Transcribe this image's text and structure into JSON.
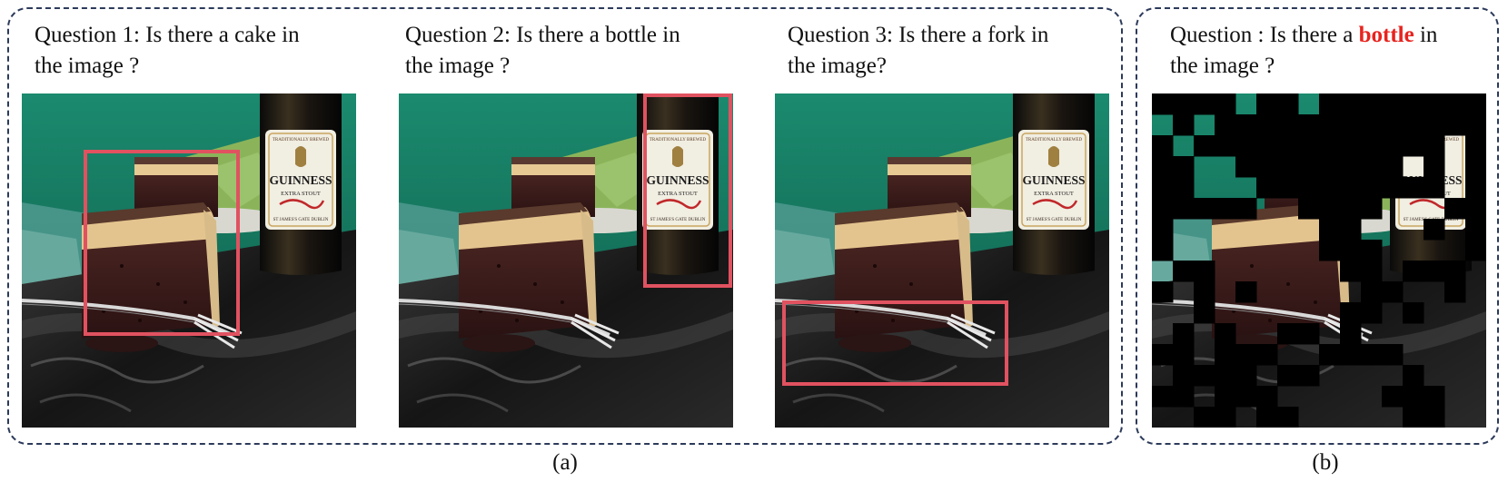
{
  "panel_a": {
    "caption": "(a)",
    "questions": [
      {
        "line1": "Question 1: Is there a cake in",
        "line2": "the image ?",
        "target": "cake"
      },
      {
        "line1": "Question 2: Is there a bottle in",
        "line2": "the image ?",
        "target": "bottle"
      },
      {
        "line1": "Question 3: Is there a fork in",
        "line2": "the image?",
        "target": "fork"
      }
    ]
  },
  "panel_b": {
    "caption": "(b)",
    "question_prefix": "Question : Is there a ",
    "question_keyword": "bottle",
    "question_suffix": " in",
    "question_line2": "the image ?",
    "keyword_color": "#e8231e"
  },
  "photo": {
    "bottle_label_brand": "GUINNESS",
    "bottle_label_sub": "EXTRA STOUT",
    "bottle_label_top": "TRADITIONALLY BREWED",
    "bottle_label_bottom": "ST JAMES'S GATE DUBLIN"
  },
  "colors": {
    "bbox": "#e05260",
    "panel_border": "#2c3a5a",
    "mask": "#000000"
  }
}
